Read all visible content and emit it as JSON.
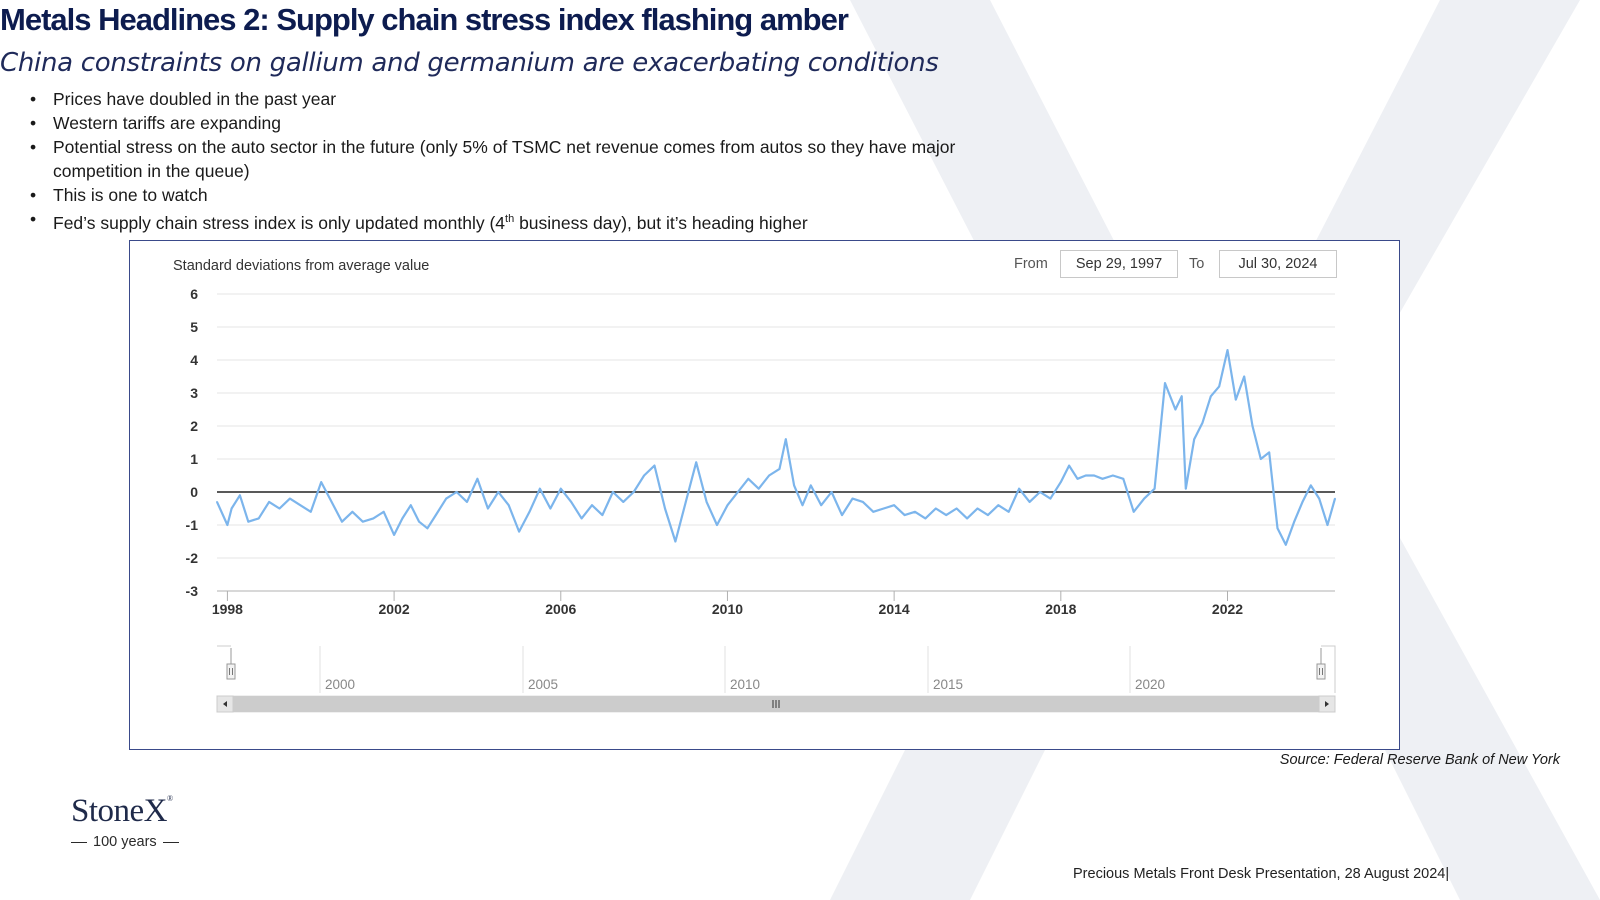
{
  "slide": {
    "title": "Metals Headlines 2: Supply chain stress index flashing amber",
    "subtitle": "China constraints on gallium and germanium are exacerbating conditions",
    "bullets": [
      "Prices have doubled in the past year",
      "Western tariffs are expanding",
      "Potential stress on the auto sector in the future (only 5% of TSMC net revenue comes from autos so they have major competition in the queue)",
      "This is one to watch"
    ],
    "bullet5": {
      "before": "Fed’s supply chain stress index is only updated monthly (4",
      "sup": "th",
      "after": " business day), but it’s heading higher"
    },
    "source": "Source: Federal Reserve Bank of New York",
    "footer": "Precious Metals Front Desk Presentation, 28 August 2024|",
    "logo": {
      "name": "StoneX",
      "reg": "®",
      "tagline": "100 years"
    }
  },
  "range_selector": {
    "from_label": "From",
    "from_value": "Sep 29, 1997",
    "to_label": "To",
    "to_value": "Jul 30, 2024"
  },
  "navigator": {
    "labels": [
      "2000",
      "2005",
      "2010",
      "2015",
      "2020"
    ],
    "scroll_left_icon": "triangle-left-icon",
    "scroll_right_icon": "triangle-right-icon",
    "grip_icon": "grip-lines-icon"
  },
  "colors": {
    "title": "#0d1c4f",
    "line": "#7cb5ec",
    "zero_line": "#222222",
    "grid": "#e6e6e6",
    "frame": "#3a4a8a",
    "watermark": "#eef0f4"
  },
  "chart_data": {
    "type": "line",
    "ylabel": "Standard deviations from average value",
    "xlabel": "",
    "ylim": [
      -3,
      6
    ],
    "yticks": [
      6,
      5,
      4,
      3,
      2,
      1,
      0,
      -1,
      -2,
      -3
    ],
    "xlim": [
      1997.75,
      2024.58
    ],
    "xticks": [
      1998,
      2002,
      2006,
      2010,
      2014,
      2018,
      2022
    ],
    "grid": true,
    "legend": "none",
    "series": [
      {
        "x": [
          1997.75,
          1998.0,
          1998.1,
          1998.3,
          1998.5,
          1998.75,
          1999.0,
          1999.25,
          1999.5,
          1999.75,
          2000.0,
          2000.25,
          2000.5,
          2000.75,
          2001.0,
          2001.25,
          2001.5,
          2001.75,
          2002.0,
          2002.2,
          2002.4,
          2002.6,
          2002.8,
          2003.0,
          2003.25,
          2003.5,
          2003.75,
          2004.0,
          2004.25,
          2004.5,
          2004.75,
          2005.0,
          2005.25,
          2005.5,
          2005.75,
          2006.0,
          2006.25,
          2006.5,
          2006.75,
          2007.0,
          2007.25,
          2007.5,
          2007.75,
          2008.0,
          2008.25,
          2008.5,
          2008.75,
          2009.0,
          2009.25,
          2009.5,
          2009.75,
          2010.0,
          2010.25,
          2010.5,
          2010.75,
          2011.0,
          2011.25,
          2011.4,
          2011.6,
          2011.8,
          2012.0,
          2012.25,
          2012.5,
          2012.75,
          2013.0,
          2013.25,
          2013.5,
          2013.75,
          2014.0,
          2014.25,
          2014.5,
          2014.75,
          2015.0,
          2015.25,
          2015.5,
          2015.75,
          2016.0,
          2016.25,
          2016.5,
          2016.75,
          2017.0,
          2017.25,
          2017.5,
          2017.75,
          2018.0,
          2018.2,
          2018.4,
          2018.6,
          2018.8,
          2019.0,
          2019.25,
          2019.5,
          2019.75,
          2020.0,
          2020.25,
          2020.5,
          2020.75,
          2020.9,
          2021.0,
          2021.2,
          2021.4,
          2021.6,
          2021.8,
          2022.0,
          2022.2,
          2022.4,
          2022.6,
          2022.8,
          2023.0,
          2023.2,
          2023.4,
          2023.6,
          2023.8,
          2024.0,
          2024.2,
          2024.4,
          2024.58
        ],
        "y": [
          -0.3,
          -1.0,
          -0.5,
          -0.1,
          -0.9,
          -0.8,
          -0.3,
          -0.5,
          -0.2,
          -0.4,
          -0.6,
          0.3,
          -0.3,
          -0.9,
          -0.6,
          -0.9,
          -0.8,
          -0.6,
          -1.3,
          -0.8,
          -0.4,
          -0.9,
          -1.1,
          -0.7,
          -0.2,
          0.0,
          -0.3,
          0.4,
          -0.5,
          0.0,
          -0.4,
          -1.2,
          -0.6,
          0.1,
          -0.5,
          0.1,
          -0.3,
          -0.8,
          -0.4,
          -0.7,
          0.0,
          -0.3,
          0.0,
          0.5,
          0.8,
          -0.5,
          -1.5,
          -0.3,
          0.9,
          -0.3,
          -1.0,
          -0.4,
          0.0,
          0.4,
          0.1,
          0.5,
          0.7,
          1.6,
          0.2,
          -0.4,
          0.2,
          -0.4,
          0.0,
          -0.7,
          -0.2,
          -0.3,
          -0.6,
          -0.5,
          -0.4,
          -0.7,
          -0.6,
          -0.8,
          -0.5,
          -0.7,
          -0.5,
          -0.8,
          -0.5,
          -0.7,
          -0.4,
          -0.6,
          0.1,
          -0.3,
          0.0,
          -0.2,
          0.3,
          0.8,
          0.4,
          0.5,
          0.5,
          0.4,
          0.5,
          0.4,
          -0.6,
          -0.2,
          0.1,
          3.3,
          2.5,
          2.9,
          0.1,
          1.6,
          2.1,
          2.9,
          3.2,
          4.3,
          2.8,
          3.5,
          2.0,
          1.0,
          1.2,
          -1.1,
          -1.6,
          -0.9,
          -0.3,
          0.2,
          -0.2,
          -1.0,
          -0.2
        ]
      }
    ]
  }
}
